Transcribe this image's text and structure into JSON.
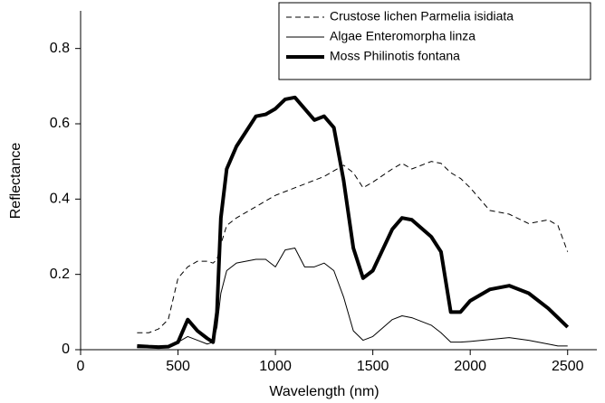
{
  "chart_data": {
    "type": "line",
    "xlabel": "Wavelength (nm)",
    "ylabel": "Reflectance",
    "x": [
      290,
      350,
      400,
      450,
      500,
      550,
      600,
      650,
      680,
      700,
      720,
      750,
      800,
      900,
      950,
      1000,
      1050,
      1100,
      1150,
      1200,
      1250,
      1300,
      1350,
      1400,
      1450,
      1500,
      1600,
      1650,
      1700,
      1800,
      1850,
      1900,
      1950,
      2000,
      2100,
      2200,
      2300,
      2400,
      2450,
      2500
    ],
    "series": [
      {
        "name": "Crustose lichen Parmelia isidiata",
        "color": "#000000",
        "dash": "6 4",
        "width": 1,
        "values": [
          0.045,
          0.045,
          0.055,
          0.08,
          0.19,
          0.22,
          0.235,
          0.235,
          0.23,
          0.24,
          0.28,
          0.33,
          0.35,
          0.38,
          0.395,
          0.41,
          0.42,
          0.43,
          0.44,
          0.45,
          0.46,
          0.475,
          0.49,
          0.47,
          0.43,
          0.445,
          0.48,
          0.495,
          0.48,
          0.5,
          0.495,
          0.47,
          0.455,
          0.43,
          0.37,
          0.36,
          0.335,
          0.345,
          0.33,
          0.26
        ]
      },
      {
        "name": "Algae Enteromorpha linza",
        "color": "#000000",
        "dash": "none",
        "width": 1,
        "values": [
          0.005,
          0.005,
          0.005,
          0.008,
          0.02,
          0.035,
          0.025,
          0.015,
          0.02,
          0.06,
          0.15,
          0.21,
          0.23,
          0.24,
          0.24,
          0.22,
          0.265,
          0.27,
          0.22,
          0.22,
          0.23,
          0.21,
          0.14,
          0.05,
          0.025,
          0.035,
          0.08,
          0.09,
          0.085,
          0.065,
          0.045,
          0.02,
          0.02,
          0.022,
          0.027,
          0.032,
          0.025,
          0.015,
          0.01,
          0.01
        ]
      },
      {
        "name": "Moss Philinotis fontana",
        "color": "#000000",
        "dash": "none",
        "width": 4,
        "values": [
          0.01,
          0.008,
          0.007,
          0.008,
          0.02,
          0.08,
          0.05,
          0.03,
          0.02,
          0.1,
          0.35,
          0.48,
          0.54,
          0.62,
          0.625,
          0.64,
          0.665,
          0.67,
          0.64,
          0.61,
          0.62,
          0.59,
          0.45,
          0.27,
          0.19,
          0.21,
          0.32,
          0.35,
          0.345,
          0.3,
          0.26,
          0.1,
          0.1,
          0.13,
          0.16,
          0.17,
          0.15,
          0.11,
          0.085,
          0.06
        ]
      }
    ],
    "xlim": [
      0,
      2650
    ],
    "ylim": [
      0,
      0.9
    ],
    "xticks": [
      0,
      500,
      1000,
      1500,
      2000,
      2500
    ],
    "yticks": [
      0,
      0.2,
      0.4,
      0.6,
      0.8
    ],
    "grid": false,
    "legend": "upper right"
  }
}
